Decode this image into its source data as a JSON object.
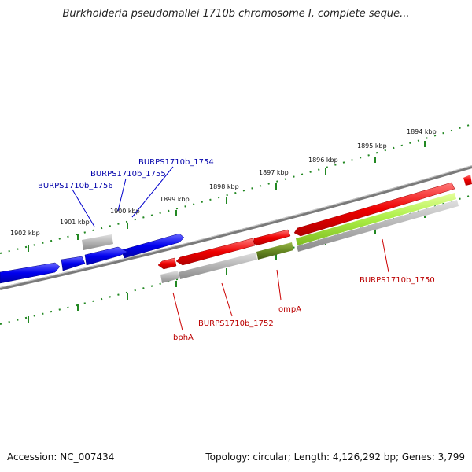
{
  "title": "Burkholderia pseudomallei 1710b chromosome I, complete seque...",
  "footer": {
    "accession": "Accession: NC_007434",
    "summary": "Topology: circular; Length: 4,126,292 bp; Genes: 3,799"
  },
  "scale_labels": [
    "1894 kbp",
    "1895 kbp",
    "1896 kbp",
    "1897 kbp",
    "1898 kbp",
    "1899 kbp",
    "1900 kbp",
    "1901 kbp",
    "1902 kbp"
  ],
  "gene_labels": {
    "burps_1754": "BURPS1710b_1754",
    "burps_1755": "BURPS1710b_1755",
    "burps_1756": "BURPS1710b_1756",
    "burps_1752": "BURPS1710b_1752",
    "burps_1750": "BURPS1710b_1750",
    "ompA": "ompA",
    "bphA": "bphA"
  },
  "colors": {
    "forward_gene": "#0000ee",
    "reverse_gene": "#ee0000",
    "pseudo_gene": "#b0b0b0",
    "highlight_gene": "#aaee44",
    "olive_gene": "#668822",
    "backbone": "#7a7a7a",
    "tick": "#228822"
  }
}
